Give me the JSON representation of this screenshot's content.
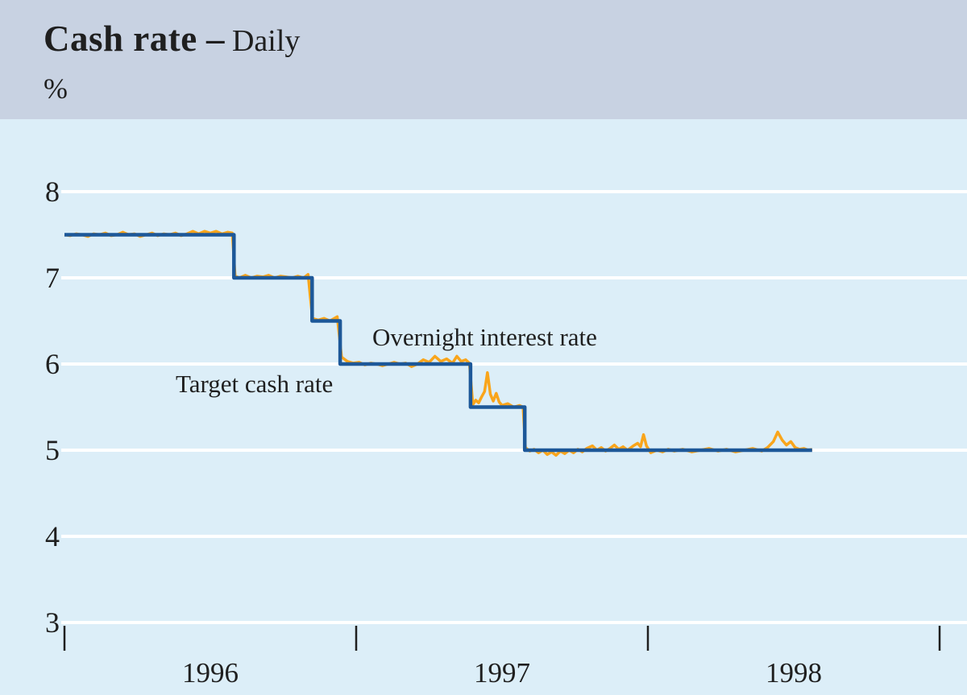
{
  "header": {
    "title": "Cash rate",
    "separator": "–",
    "subtitle": "Daily",
    "unit": "%"
  },
  "colors": {
    "header_background": "#c8d2e2",
    "chart_background": "#dceef8",
    "gridline": "#ffffff",
    "axis_text": "#1f1f1f",
    "tick": "#1f1f1f",
    "target_line": "#1d5899",
    "overnight_line": "#f9a51b"
  },
  "chart_data": {
    "type": "line",
    "title": "Cash rate – Daily",
    "ylabel": "%",
    "frequency": "Daily",
    "ylim": [
      3,
      8.84
    ],
    "xlim_years": [
      1996.0,
      1999.09
    ],
    "grid": "horizontal-only",
    "legend_position": "none (inline annotations)",
    "yticks": [
      {
        "label": "8",
        "value": 8
      },
      {
        "label": "7",
        "value": 7
      },
      {
        "label": "6",
        "value": 6
      },
      {
        "label": "5",
        "value": 5
      },
      {
        "label": "4",
        "value": 4
      },
      {
        "label": "3",
        "value": 3
      }
    ],
    "xtick_marks_years": [
      1996.0,
      1997.0,
      1998.0,
      1999.0
    ],
    "xlabels": [
      {
        "label": "1996",
        "center_year": 1996.5
      },
      {
        "label": "1997",
        "center_year": 1997.5
      },
      {
        "label": "1998",
        "center_year": 1998.5
      }
    ],
    "annotations": [
      {
        "text": "Target cash rate"
      },
      {
        "text": "Overnight interest rate"
      }
    ],
    "series": [
      {
        "name": "Target cash rate",
        "style": "step",
        "color_key": "target_line",
        "points": [
          [
            1996.0,
            7.5
          ],
          [
            1996.581,
            7.5
          ],
          [
            1996.581,
            7.0
          ],
          [
            1996.849,
            7.0
          ],
          [
            1996.849,
            6.5
          ],
          [
            1996.945,
            6.5
          ],
          [
            1996.945,
            6.0
          ],
          [
            1997.392,
            6.0
          ],
          [
            1997.392,
            5.5
          ],
          [
            1997.578,
            5.5
          ],
          [
            1997.578,
            5.0
          ],
          [
            1998.563,
            5.0
          ]
        ]
      },
      {
        "name": "Overnight interest rate",
        "style": "noisy-line",
        "color_key": "overnight_line",
        "points": [
          [
            1996.0,
            7.5
          ],
          [
            1996.02,
            7.49
          ],
          [
            1996.04,
            7.51
          ],
          [
            1996.06,
            7.5
          ],
          [
            1996.08,
            7.48
          ],
          [
            1996.1,
            7.51
          ],
          [
            1996.12,
            7.5
          ],
          [
            1996.14,
            7.52
          ],
          [
            1996.16,
            7.49
          ],
          [
            1996.18,
            7.5
          ],
          [
            1996.2,
            7.53
          ],
          [
            1996.22,
            7.5
          ],
          [
            1996.24,
            7.51
          ],
          [
            1996.26,
            7.48
          ],
          [
            1996.28,
            7.5
          ],
          [
            1996.3,
            7.52
          ],
          [
            1996.32,
            7.49
          ],
          [
            1996.34,
            7.51
          ],
          [
            1996.36,
            7.5
          ],
          [
            1996.38,
            7.52
          ],
          [
            1996.4,
            7.49
          ],
          [
            1996.42,
            7.51
          ],
          [
            1996.44,
            7.54
          ],
          [
            1996.46,
            7.51
          ],
          [
            1996.48,
            7.54
          ],
          [
            1996.5,
            7.52
          ],
          [
            1996.52,
            7.54
          ],
          [
            1996.54,
            7.51
          ],
          [
            1996.56,
            7.53
          ],
          [
            1996.575,
            7.52
          ],
          [
            1996.585,
            7.02
          ],
          [
            1996.6,
            7.0
          ],
          [
            1996.62,
            7.03
          ],
          [
            1996.64,
            7.0
          ],
          [
            1996.66,
            7.02
          ],
          [
            1996.68,
            7.01
          ],
          [
            1996.7,
            7.03
          ],
          [
            1996.72,
            7.0
          ],
          [
            1996.74,
            7.02
          ],
          [
            1996.76,
            7.01
          ],
          [
            1996.78,
            7.0
          ],
          [
            1996.8,
            7.02
          ],
          [
            1996.82,
            7.0
          ],
          [
            1996.835,
            7.04
          ],
          [
            1996.85,
            6.53
          ],
          [
            1996.87,
            6.51
          ],
          [
            1996.89,
            6.53
          ],
          [
            1996.91,
            6.5
          ],
          [
            1996.935,
            6.55
          ],
          [
            1996.95,
            6.08
          ],
          [
            1996.97,
            6.03
          ],
          [
            1996.99,
            6.01
          ],
          [
            1997.01,
            6.02
          ],
          [
            1997.03,
            5.99
          ],
          [
            1997.05,
            6.01
          ],
          [
            1997.07,
            6.0
          ],
          [
            1997.09,
            5.98
          ],
          [
            1997.11,
            6.0
          ],
          [
            1997.13,
            6.02
          ],
          [
            1997.15,
            6.0
          ],
          [
            1997.17,
            6.01
          ],
          [
            1997.19,
            5.97
          ],
          [
            1997.21,
            6.0
          ],
          [
            1997.23,
            6.05
          ],
          [
            1997.25,
            6.02
          ],
          [
            1997.27,
            6.09
          ],
          [
            1997.29,
            6.03
          ],
          [
            1997.31,
            6.06
          ],
          [
            1997.33,
            6.01
          ],
          [
            1997.345,
            6.09
          ],
          [
            1997.36,
            6.03
          ],
          [
            1997.375,
            6.05
          ],
          [
            1997.388,
            6.01
          ],
          [
            1997.4,
            5.53
          ],
          [
            1997.41,
            5.58
          ],
          [
            1997.42,
            5.55
          ],
          [
            1997.43,
            5.62
          ],
          [
            1997.44,
            5.68
          ],
          [
            1997.45,
            5.9
          ],
          [
            1997.46,
            5.65
          ],
          [
            1997.47,
            5.57
          ],
          [
            1997.48,
            5.66
          ],
          [
            1997.49,
            5.56
          ],
          [
            1997.5,
            5.52
          ],
          [
            1997.52,
            5.54
          ],
          [
            1997.54,
            5.5
          ],
          [
            1997.56,
            5.52
          ],
          [
            1997.572,
            5.5
          ],
          [
            1997.58,
            5.03
          ],
          [
            1997.595,
            4.99
          ],
          [
            1997.61,
            5.01
          ],
          [
            1997.625,
            4.97
          ],
          [
            1997.64,
            5.0
          ],
          [
            1997.655,
            4.95
          ],
          [
            1997.67,
            4.98
          ],
          [
            1997.685,
            4.94
          ],
          [
            1997.7,
            4.99
          ],
          [
            1997.715,
            4.96
          ],
          [
            1997.73,
            5.0
          ],
          [
            1997.745,
            4.97
          ],
          [
            1997.76,
            5.01
          ],
          [
            1997.775,
            4.98
          ],
          [
            1997.79,
            5.02
          ],
          [
            1997.81,
            5.05
          ],
          [
            1997.825,
            5.0
          ],
          [
            1997.84,
            5.03
          ],
          [
            1997.855,
            4.99
          ],
          [
            1997.87,
            5.02
          ],
          [
            1997.885,
            5.06
          ],
          [
            1997.9,
            5.01
          ],
          [
            1997.915,
            5.04
          ],
          [
            1997.93,
            5.0
          ],
          [
            1997.95,
            5.05
          ],
          [
            1997.965,
            5.08
          ],
          [
            1997.975,
            5.04
          ],
          [
            1997.985,
            5.18
          ],
          [
            1997.995,
            5.05
          ],
          [
            1998.01,
            4.97
          ],
          [
            1998.03,
            5.0
          ],
          [
            1998.05,
            4.98
          ],
          [
            1998.07,
            5.01
          ],
          [
            1998.09,
            4.99
          ],
          [
            1998.12,
            5.01
          ],
          [
            1998.15,
            4.98
          ],
          [
            1998.18,
            5.0
          ],
          [
            1998.21,
            5.02
          ],
          [
            1998.24,
            4.99
          ],
          [
            1998.27,
            5.01
          ],
          [
            1998.3,
            4.98
          ],
          [
            1998.33,
            5.0
          ],
          [
            1998.36,
            5.02
          ],
          [
            1998.39,
            4.99
          ],
          [
            1998.41,
            5.03
          ],
          [
            1998.43,
            5.1
          ],
          [
            1998.445,
            5.21
          ],
          [
            1998.46,
            5.12
          ],
          [
            1998.475,
            5.06
          ],
          [
            1998.49,
            5.1
          ],
          [
            1998.505,
            5.03
          ],
          [
            1998.52,
            5.01
          ],
          [
            1998.535,
            5.02
          ],
          [
            1998.55,
            5.0
          ],
          [
            1998.563,
            5.01
          ]
        ]
      }
    ]
  }
}
